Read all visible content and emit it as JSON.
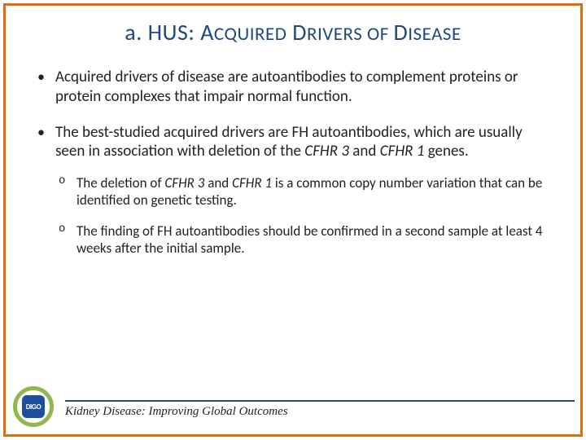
{
  "title_parts": {
    "lead": "a. HUS: ",
    "w1_big": "A",
    "w1_rest": "CQUIRED",
    "w2_big": "D",
    "w2_rest": "RIVERS",
    "mid": " OF ",
    "w3_big": "D",
    "w3_rest": "ISEASE"
  },
  "bullets": {
    "b1": "Acquired drivers of disease are autoantibodies to complement proteins or protein complexes that impair normal function.",
    "b2_pre": "The best-studied acquired drivers are FH autoantibodies, which are usually seen in association with deletion of the ",
    "b2_g1": "CFHR 3",
    "b2_mid": " and ",
    "b2_g2": "CFHR 1",
    "b2_post": " genes.",
    "s1_pre": "The deletion of ",
    "s1_g1": "CFHR 3",
    "s1_mid": " and ",
    "s1_g2": "CFHR 1",
    "s1_post": " is a common copy number variation that can be identified on genetic testing.",
    "s2": "The finding of FH autoantibodies should be confirmed in a second sample at least 4 weeks after the initial sample."
  },
  "footer": {
    "logo_text": "DIGO",
    "tagline": "Kidney Disease: Improving Global Outcomes"
  },
  "colors": {
    "border": "#e36c0a",
    "title": "#1f497d",
    "rule": "#1f497d",
    "logo_ring": "#8fb84e",
    "logo_inner": "#1f4e9c"
  }
}
